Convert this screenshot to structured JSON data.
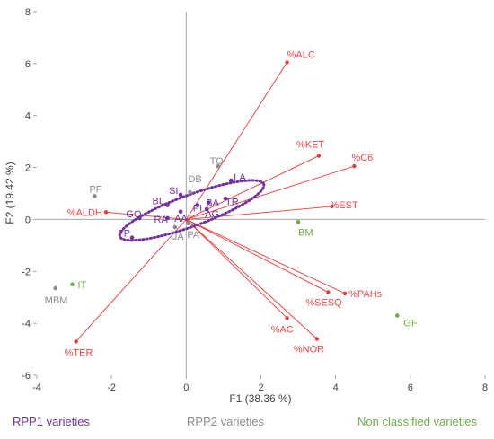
{
  "chart_data": {
    "type": "scatter",
    "subtype": "biplot",
    "xlabel": "F1 (38.36 %)",
    "ylabel": "F2 (19.42 %)",
    "xlim": [
      -4,
      8
    ],
    "ylim": [
      -6,
      8
    ],
    "xticks": [
      -4,
      -2,
      0,
      2,
      4,
      6,
      8
    ],
    "yticks": [
      -6,
      -4,
      -2,
      0,
      2,
      4,
      6,
      8
    ],
    "grid": false,
    "colors": {
      "vectors": "#ec3b3b",
      "vector_labels": "#f04848",
      "rpp1": "#7030a0",
      "rpp2": "#8c8c8c",
      "non_classified": "#70ad47",
      "axes": "#a6a6a6"
    },
    "vectors": [
      {
        "label": "%ALC",
        "x": 2.7,
        "y": 6.05
      },
      {
        "label": "%KET",
        "x": 3.55,
        "y": 2.45
      },
      {
        "label": "%C6",
        "x": 4.5,
        "y": 2.05
      },
      {
        "label": "%EST",
        "x": 3.9,
        "y": 0.5
      },
      {
        "label": "%ALDH",
        "x": -2.15,
        "y": 0.28
      },
      {
        "label": "%PAHs",
        "x": 4.25,
        "y": -2.85
      },
      {
        "label": "%SESQ",
        "x": 3.8,
        "y": -2.8
      },
      {
        "label": "%AC",
        "x": 2.7,
        "y": -3.8
      },
      {
        "label": "%NOR",
        "x": 3.5,
        "y": -4.6
      },
      {
        "label": "%TER",
        "x": -2.95,
        "y": -4.7
      }
    ],
    "series": [
      {
        "group": "rpp1",
        "points": [
          {
            "label": "LA",
            "x": 1.2,
            "y": 1.5
          },
          {
            "label": "SI",
            "x": -0.15,
            "y": 0.95
          },
          {
            "label": "BL",
            "x": -0.5,
            "y": 0.55
          },
          {
            "label": "BA",
            "x": 0.6,
            "y": 0.65
          },
          {
            "label": "TR",
            "x": 1.05,
            "y": 0.8
          },
          {
            "label": "PI",
            "x": 0.3,
            "y": 0.55
          },
          {
            "label": "AG",
            "x": 0.55,
            "y": 0.4
          },
          {
            "label": "GO",
            "x": -1.25,
            "y": 0.05
          },
          {
            "label": "RA",
            "x": -0.5,
            "y": 0.05
          },
          {
            "label": "AA",
            "x": -0.15,
            "y": 0.3
          },
          {
            "label": "FP",
            "x": -1.45,
            "y": -0.7
          }
        ]
      },
      {
        "group": "rpp2",
        "points": [
          {
            "label": "TO",
            "x": 0.85,
            "y": 2.05
          },
          {
            "label": "DB",
            "x": 0.1,
            "y": 1.05
          },
          {
            "label": "PF",
            "x": -2.45,
            "y": 0.9
          },
          {
            "label": "JA",
            "x": -0.3,
            "y": -0.3
          },
          {
            "label": "PA",
            "x": 0.05,
            "y": -0.15
          },
          {
            "label": "MBM",
            "x": -3.5,
            "y": -2.65
          }
        ]
      },
      {
        "group": "non_classified",
        "points": [
          {
            "label": "BM",
            "x": 3.0,
            "y": -0.1
          },
          {
            "label": "IT",
            "x": -3.05,
            "y": -2.5
          },
          {
            "label": "GF",
            "x": 5.65,
            "y": -3.7
          }
        ]
      }
    ],
    "ellipse": {
      "group": "rpp1",
      "cx": 0.15,
      "cy": 0.35,
      "rx": 2.05,
      "ry": 0.6,
      "angle_deg": 20,
      "style": "dotted"
    },
    "legend": [
      {
        "group": "rpp1",
        "label": "RPP1 varieties"
      },
      {
        "group": "rpp2",
        "label": "RPP2 varieties"
      },
      {
        "group": "non_classified",
        "label": "Non classified varieties"
      }
    ],
    "legend_position": "bottom"
  }
}
